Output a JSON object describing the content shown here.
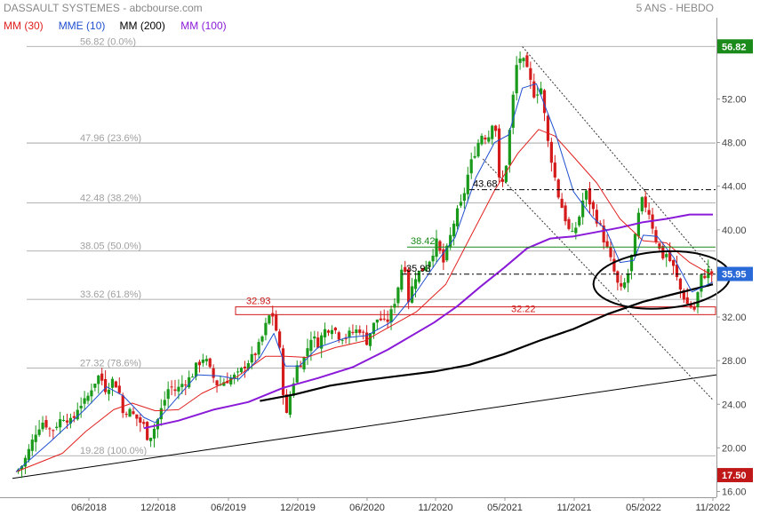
{
  "header": {
    "title": "DASSAULT SYSTEMES - abcbourse.com",
    "period": "5 ANS - HEBDO",
    "legend": [
      {
        "label": "MM (30)",
        "color": "#e0201e"
      },
      {
        "label": "MME (10)",
        "color": "#2050d0"
      },
      {
        "label": "MM (200)",
        "color": "#000000"
      },
      {
        "label": "MM (100)",
        "color": "#8a1ad8"
      }
    ]
  },
  "chart_data": {
    "type": "candlestick",
    "x_ticks": [
      "06/2018",
      "12/2018",
      "06/2019",
      "12/2019",
      "06/2020",
      "11/2020",
      "05/2021",
      "11/2021",
      "05/2022",
      "11/2022"
    ],
    "y_ticks": [
      "52.00",
      "48.00",
      "44.00",
      "40.00",
      "36.00",
      "32.00",
      "28.00",
      "24.00",
      "20.00",
      "16.00"
    ],
    "ylim": [
      16,
      59
    ],
    "fib_levels": [
      {
        "label": "56.82  (0.0%)",
        "value": 56.82
      },
      {
        "label": "47.96  (23.6%)",
        "value": 47.96
      },
      {
        "label": "42.48  (38.2%)",
        "value": 42.48
      },
      {
        "label": "38.05  (50.0%)",
        "value": 38.05
      },
      {
        "label": "33.62  (61.8%)",
        "value": 33.62
      },
      {
        "label": "27.32  (78.6%)",
        "value": 27.32
      },
      {
        "label": "19.28  (100.0%)",
        "value": 19.28
      }
    ],
    "annotations": [
      {
        "label": "43.68",
        "value": 43.68,
        "color": "#000000"
      },
      {
        "label": "38.42",
        "value": 38.42,
        "color": "#1a8a1a"
      },
      {
        "label": "35.93",
        "value": 35.93,
        "color": "#000000"
      },
      {
        "label": "32.93",
        "value": 32.93,
        "color": "#d01818"
      },
      {
        "label": "32.22",
        "value": 32.22,
        "color": "#d01818"
      }
    ],
    "price_tags": [
      {
        "label": "56.82",
        "value": 56.82,
        "color": "#1a8a1a"
      },
      {
        "label": "35.95",
        "value": 35.95,
        "color": "#2a6ad8"
      },
      {
        "label": "17.50",
        "value": 17.5,
        "color": "#c01818"
      }
    ],
    "closes": [
      [
        0,
        17.8
      ],
      [
        6,
        18.5
      ],
      [
        12,
        20
      ],
      [
        18,
        21.8
      ],
      [
        24,
        22.5
      ],
      [
        30,
        21.5
      ],
      [
        36,
        22.3
      ],
      [
        42,
        23
      ],
      [
        48,
        22.2
      ],
      [
        54,
        24
      ],
      [
        60,
        24.2
      ],
      [
        66,
        25.8
      ],
      [
        72,
        26.7
      ],
      [
        78,
        25.2
      ],
      [
        82,
        26.3
      ],
      [
        88,
        25.6
      ],
      [
        92,
        23.2
      ],
      [
        96,
        23.5
      ],
      [
        104,
        22.7
      ],
      [
        110,
        22
      ],
      [
        114,
        20.8
      ],
      [
        120,
        22
      ],
      [
        126,
        23.8
      ],
      [
        132,
        25.7
      ],
      [
        138,
        25.2
      ],
      [
        144,
        26
      ],
      [
        150,
        26.4
      ],
      [
        156,
        27.6
      ],
      [
        162,
        28.4
      ],
      [
        168,
        26.8
      ],
      [
        174,
        25.7
      ],
      [
        180,
        26.2
      ],
      [
        186,
        26.4
      ],
      [
        192,
        26.7
      ],
      [
        198,
        27.8
      ],
      [
        204,
        28.3
      ],
      [
        210,
        29.5
      ],
      [
        216,
        31.5
      ],
      [
        220,
        32.6
      ],
      [
        224,
        30.8
      ],
      [
        228,
        28.2
      ],
      [
        232,
        22.3
      ],
      [
        236,
        24.8
      ],
      [
        242,
        27.5
      ],
      [
        248,
        28.2
      ],
      [
        254,
        30.2
      ],
      [
        260,
        29.6
      ],
      [
        266,
        30.8
      ],
      [
        272,
        31.2
      ],
      [
        278,
        30.3
      ],
      [
        284,
        30.2
      ],
      [
        290,
        30.6
      ],
      [
        296,
        30.9
      ],
      [
        302,
        29.8
      ],
      [
        306,
        30.9
      ],
      [
        312,
        32
      ],
      [
        318,
        31.3
      ],
      [
        324,
        32.6
      ],
      [
        330,
        35.3
      ],
      [
        334,
        37.6
      ],
      [
        338,
        33.6
      ],
      [
        344,
        35.8
      ],
      [
        350,
        36.4
      ],
      [
        356,
        37.3
      ],
      [
        362,
        38.8
      ],
      [
        368,
        37
      ],
      [
        372,
        38.5
      ],
      [
        378,
        41.1
      ],
      [
        384,
        42.5
      ],
      [
        390,
        45.5
      ],
      [
        396,
        47.5
      ],
      [
        402,
        49
      ],
      [
        406,
        48.2
      ],
      [
        412,
        50.8
      ],
      [
        416,
        44.5
      ],
      [
        420,
        44.2
      ],
      [
        424,
        48
      ],
      [
        428,
        52.2
      ],
      [
        432,
        56
      ],
      [
        436,
        55.6
      ],
      [
        440,
        54.5
      ],
      [
        446,
        52.5
      ],
      [
        452,
        53
      ],
      [
        458,
        48
      ],
      [
        462,
        46
      ],
      [
        466,
        43.5
      ],
      [
        472,
        41.4
      ],
      [
        478,
        39.2
      ],
      [
        484,
        40.8
      ],
      [
        490,
        43.6
      ],
      [
        496,
        42
      ],
      [
        502,
        40.5
      ],
      [
        508,
        38.5
      ],
      [
        514,
        36.5
      ],
      [
        520,
        34.2
      ],
      [
        526,
        35.5
      ],
      [
        532,
        38.5
      ],
      [
        538,
        42.7
      ],
      [
        544,
        42
      ],
      [
        550,
        39.5
      ],
      [
        556,
        37.5
      ],
      [
        560,
        37.8
      ],
      [
        566,
        36.5
      ],
      [
        572,
        34.5
      ],
      [
        578,
        33.2
      ],
      [
        584,
        32.7
      ],
      [
        590,
        35.6
      ],
      [
        596,
        36.2
      ],
      [
        600,
        35.95
      ]
    ],
    "mme10": [
      [
        0,
        17.8
      ],
      [
        30,
        20.6
      ],
      [
        60,
        23.6
      ],
      [
        78,
        25.6
      ],
      [
        92,
        24.8
      ],
      [
        110,
        22.8
      ],
      [
        120,
        22.3
      ],
      [
        138,
        24.5
      ],
      [
        156,
        26.7
      ],
      [
        174,
        26.6
      ],
      [
        192,
        26.3
      ],
      [
        210,
        28.3
      ],
      [
        222,
        30.5
      ],
      [
        232,
        27.5
      ],
      [
        244,
        27.5
      ],
      [
        260,
        29.2
      ],
      [
        284,
        30.1
      ],
      [
        302,
        30.3
      ],
      [
        324,
        31.6
      ],
      [
        344,
        34.2
      ],
      [
        362,
        37
      ],
      [
        378,
        39.3
      ],
      [
        396,
        44.8
      ],
      [
        412,
        48
      ],
      [
        424,
        48.7
      ],
      [
        436,
        53
      ],
      [
        448,
        53.4
      ],
      [
        464,
        49
      ],
      [
        480,
        43.5
      ],
      [
        496,
        41.2
      ],
      [
        508,
        40
      ],
      [
        520,
        37
      ],
      [
        532,
        37.2
      ],
      [
        540,
        39.5
      ],
      [
        552,
        39.4
      ],
      [
        566,
        37.5
      ],
      [
        582,
        34.3
      ],
      [
        600,
        35.2
      ]
    ],
    "mm30": [
      [
        0,
        17.8
      ],
      [
        40,
        19.5
      ],
      [
        60,
        21.5
      ],
      [
        84,
        23.5
      ],
      [
        100,
        24.1
      ],
      [
        120,
        23.4
      ],
      [
        140,
        23.5
      ],
      [
        160,
        25
      ],
      [
        190,
        26.5
      ],
      [
        215,
        28.4
      ],
      [
        232,
        28.4
      ],
      [
        250,
        28.3
      ],
      [
        275,
        29.2
      ],
      [
        300,
        29.8
      ],
      [
        320,
        31
      ],
      [
        345,
        32.5
      ],
      [
        370,
        35
      ],
      [
        392,
        39.5
      ],
      [
        412,
        43.6
      ],
      [
        432,
        47
      ],
      [
        450,
        49.2
      ],
      [
        464,
        48.6
      ],
      [
        480,
        46.7
      ],
      [
        500,
        44.3
      ],
      [
        520,
        41
      ],
      [
        540,
        39
      ],
      [
        560,
        38.8
      ],
      [
        580,
        37
      ],
      [
        600,
        35.8
      ]
    ],
    "mm100": [
      [
        110,
        21.8
      ],
      [
        140,
        22.5
      ],
      [
        170,
        23.5
      ],
      [
        200,
        24.2
      ],
      [
        230,
        25.5
      ],
      [
        260,
        26.4
      ],
      [
        290,
        27.4
      ],
      [
        320,
        29
      ],
      [
        360,
        31.5
      ],
      [
        380,
        33
      ],
      [
        400,
        34.8
      ],
      [
        420,
        36.5
      ],
      [
        440,
        38.3
      ],
      [
        460,
        39.2
      ],
      [
        480,
        39.4
      ],
      [
        500,
        39.8
      ],
      [
        520,
        40.2
      ],
      [
        540,
        40.7
      ],
      [
        560,
        41
      ],
      [
        580,
        41.4
      ],
      [
        600,
        41.4
      ]
    ],
    "mm200": [
      [
        210,
        24.3
      ],
      [
        240,
        24.9
      ],
      [
        270,
        25.7
      ],
      [
        300,
        26.2
      ],
      [
        330,
        26.6
      ],
      [
        360,
        27
      ],
      [
        390,
        27.6
      ],
      [
        420,
        28.6
      ],
      [
        450,
        29.8
      ],
      [
        480,
        30.9
      ],
      [
        510,
        32.3
      ],
      [
        540,
        33.4
      ],
      [
        570,
        34.2
      ],
      [
        600,
        35
      ]
    ],
    "ellipse_center": [
      556,
      35.4
    ],
    "support_line": [
      [
        0,
        17.2
      ],
      [
        600,
        26.7
      ]
    ],
    "channel_upper": [
      [
        436,
        56.8
      ],
      [
        600,
        36.2
      ]
    ],
    "channel_lower": [
      [
        402,
        46.5
      ],
      [
        600,
        24.4
      ]
    ],
    "resistance_zone": [
      32.22,
      32.93
    ],
    "grid": false,
    "legend_position": "top-left"
  }
}
